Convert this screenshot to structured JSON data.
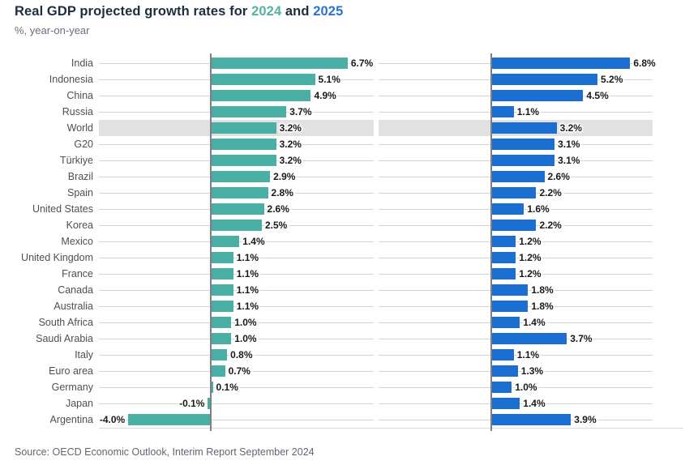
{
  "header": {
    "title_prefix": "Real GDP projected growth rates for ",
    "title_year1": "2024",
    "title_connector": " and ",
    "title_year2": "2025",
    "subtitle": "%, year-on-year"
  },
  "footer": {
    "source": "Source: OECD Economic Outlook, Interim Report September 2024"
  },
  "chart_data": {
    "type": "bar",
    "orientation": "horizontal",
    "value_suffix": "%",
    "categories": [
      "India",
      "Indonesia",
      "China",
      "Russia",
      "World",
      "G20",
      "Türkiye",
      "Brazil",
      "Spain",
      "United States",
      "Korea",
      "Mexico",
      "United Kingdom",
      "France",
      "Canada",
      "Australia",
      "South Africa",
      "Saudi Arabia",
      "Italy",
      "Euro area",
      "Germany",
      "Japan",
      "Argentina"
    ],
    "series": [
      {
        "name": "2024",
        "color": "#49afa4",
        "values": [
          6.7,
          5.1,
          4.9,
          3.7,
          3.2,
          3.2,
          3.2,
          2.9,
          2.8,
          2.6,
          2.5,
          1.4,
          1.1,
          1.1,
          1.1,
          1.1,
          1.0,
          1.0,
          0.8,
          0.7,
          0.1,
          -0.1,
          -4.0
        ]
      },
      {
        "name": "2025",
        "color": "#1c6fd2",
        "values": [
          6.8,
          5.2,
          4.5,
          1.1,
          3.2,
          3.1,
          3.1,
          2.6,
          2.2,
          1.6,
          2.2,
          1.2,
          1.2,
          1.2,
          1.8,
          1.8,
          1.4,
          3.7,
          1.1,
          1.3,
          1.0,
          1.4,
          3.9
        ]
      }
    ],
    "highlight_category": "World",
    "highlight_color": "#e1e1e1",
    "axis_range_approx": [
      -5.4,
      8.0
    ],
    "grid": "row-lines",
    "legend_position": "in-title"
  }
}
